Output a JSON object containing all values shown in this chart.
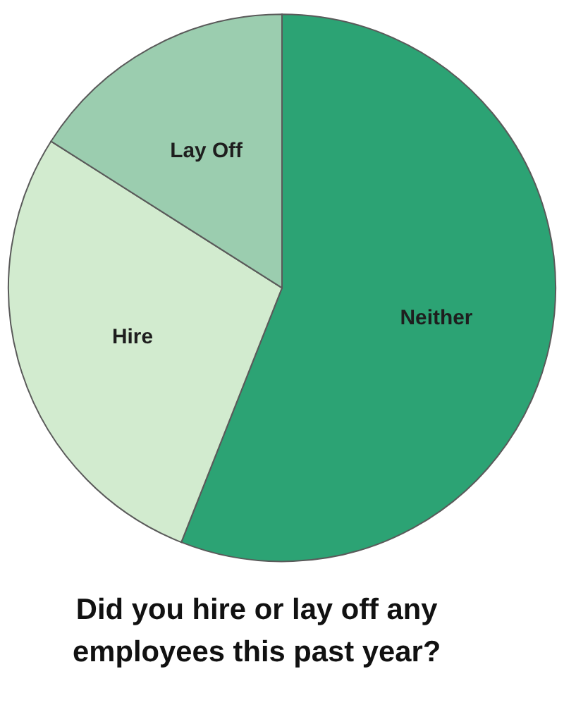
{
  "chart_data": {
    "type": "pie",
    "title": "Did you hire or lay off any employees this past year?",
    "categories": [
      "Neither",
      "Hire",
      "Lay Off"
    ],
    "values": [
      56,
      28,
      16
    ],
    "colors": [
      "#2ca374",
      "#d2ebcf",
      "#9bcdaf"
    ]
  }
}
